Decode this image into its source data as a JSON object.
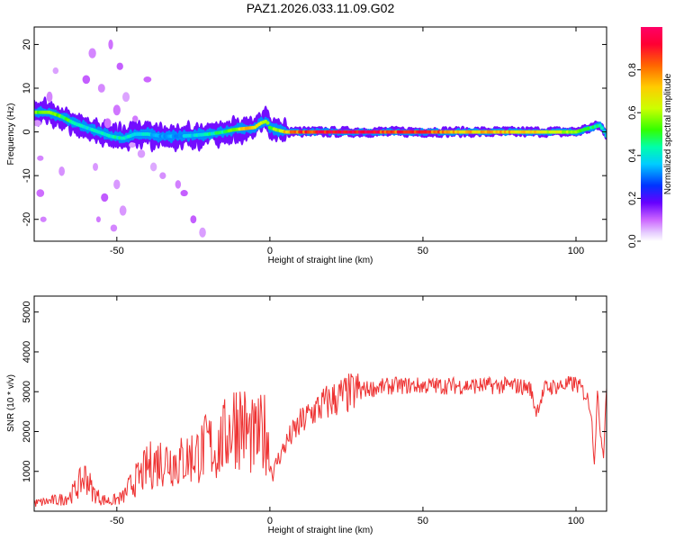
{
  "figure_title": "PAZ1.2026.033.11.09.G02",
  "chart_data": [
    {
      "type": "heatmap",
      "title": "PAZ1.2026.033.11.09.G02",
      "xlabel": "Height of straight line (km)",
      "ylabel": "Frequency (Hz)",
      "xlim": [
        -77,
        110
      ],
      "ylim": [
        -25,
        24
      ],
      "xticks": [
        -50,
        0,
        50,
        100
      ],
      "yticks": [
        -20,
        -10,
        0,
        10,
        20
      ],
      "colorbar": {
        "label": "Normalized spectral amplitude",
        "range": [
          0.0,
          1.0
        ],
        "ticks": [
          0.0,
          0.2,
          0.4,
          0.6,
          0.8
        ],
        "colors": [
          "#ffffff",
          "#e6ccff",
          "#cc66ff",
          "#6600ff",
          "#0033ff",
          "#00ccff",
          "#00ffaa",
          "#33ff00",
          "#ccff00",
          "#ffcc00",
          "#ff6600",
          "#ff0033",
          "#ff0066"
        ]
      },
      "ridge_profile": {
        "x": [
          -77,
          -72,
          -68,
          -64,
          -60,
          -56,
          -52,
          -48,
          -44,
          -40,
          -35,
          -30,
          -25,
          -20,
          -15,
          -12,
          -8,
          -5,
          -3,
          -1,
          0,
          2,
          5,
          10,
          20,
          30,
          40,
          50,
          60,
          70,
          80,
          90,
          100,
          105,
          108,
          110
        ],
        "frequency": [
          4.5,
          4.5,
          3.5,
          2.0,
          1.0,
          0.0,
          -1.0,
          -1.5,
          -0.5,
          -0.5,
          -1.0,
          -1.0,
          -0.8,
          -0.5,
          0.0,
          0.5,
          0.8,
          1.0,
          2.0,
          2.5,
          1.0,
          0.5,
          0.0,
          0.0,
          0.0,
          0.0,
          0.0,
          0.0,
          0.0,
          0.0,
          0.0,
          0.0,
          0.0,
          1.0,
          1.5,
          -1.0
        ],
        "amplitude": [
          0.6,
          0.6,
          0.55,
          0.5,
          0.4,
          0.45,
          0.45,
          0.45,
          0.4,
          0.4,
          0.35,
          0.35,
          0.4,
          0.45,
          0.5,
          0.6,
          0.75,
          0.7,
          0.65,
          0.6,
          0.55,
          0.6,
          0.75,
          0.9,
          1.0,
          1.0,
          0.9,
          0.9,
          0.8,
          0.75,
          0.75,
          0.7,
          0.6,
          0.5,
          0.45,
          0.4
        ]
      }
    },
    {
      "type": "line",
      "xlabel": "Height of straight line (km)",
      "ylabel": "SNR (10 * v/v)",
      "xlim": [
        -77,
        110
      ],
      "ylim": [
        0,
        5400
      ],
      "xticks": [
        -50,
        0,
        50,
        100
      ],
      "yticks": [
        1000,
        2000,
        3000,
        4000,
        5000
      ],
      "color": "#ee3333",
      "series": [
        {
          "name": "SNR",
          "x": [
            -77,
            -72,
            -68,
            -65,
            -62,
            -60,
            -58,
            -55,
            -52,
            -50,
            -48,
            -45,
            -42,
            -40,
            -38,
            -35,
            -32,
            -30,
            -28,
            -25,
            -22,
            -20,
            -18,
            -15,
            -13,
            -11,
            -9,
            -7,
            -5,
            -3,
            -1,
            0,
            1,
            2,
            4,
            6,
            8,
            10,
            14,
            18,
            22,
            26,
            30,
            35,
            40,
            45,
            50,
            55,
            60,
            65,
            70,
            75,
            80,
            85,
            87,
            90,
            95,
            100,
            102,
            104,
            105,
            106,
            107,
            108,
            109,
            110
          ],
          "y": [
            200,
            250,
            300,
            400,
            700,
            900,
            500,
            300,
            250,
            300,
            350,
            700,
            900,
            1100,
            1200,
            1300,
            1300,
            1200,
            1300,
            1400,
            1500,
            1700,
            1500,
            1800,
            2100,
            2300,
            2200,
            1900,
            1800,
            1900,
            2000,
            1200,
            900,
            1200,
            1500,
            1800,
            2000,
            2200,
            2500,
            2700,
            2850,
            2950,
            3050,
            3100,
            3150,
            3150,
            3150,
            3150,
            3150,
            3150,
            3150,
            3150,
            3150,
            3100,
            2500,
            3100,
            3150,
            3200,
            3050,
            2800,
            2500,
            1200,
            2900,
            2000,
            1400,
            3200
          ]
        }
      ]
    }
  ]
}
